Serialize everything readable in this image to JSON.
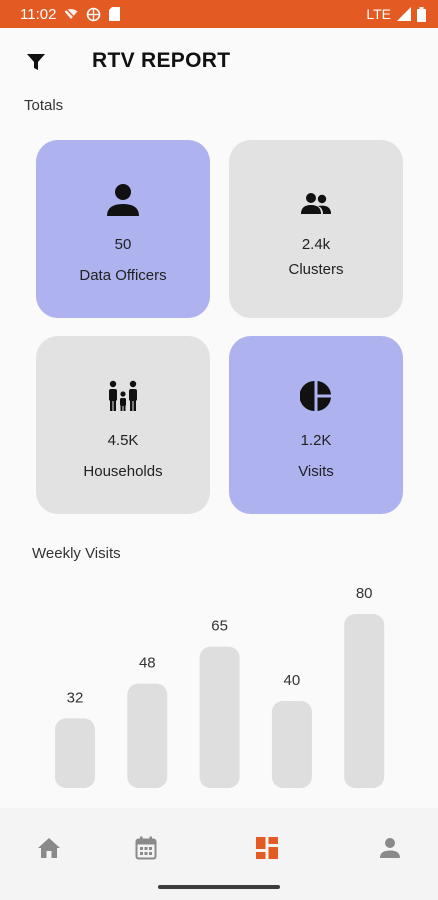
{
  "status_bar": {
    "time": "11:02",
    "network": "LTE"
  },
  "header": {
    "title": "RTV REPORT",
    "filter_icon": "filter-icon"
  },
  "totals": {
    "label": "Totals",
    "cards": [
      {
        "value": "50",
        "label": "Data Officers",
        "icon": "person-icon",
        "highlighted": true
      },
      {
        "value": "2.4k",
        "label": "Clusters",
        "icon": "group-icon",
        "highlighted": false
      },
      {
        "value": "4.5K",
        "label": "Households",
        "icon": "family-icon",
        "highlighted": false
      },
      {
        "value": "1.2K",
        "label": "Visits",
        "icon": "pie-chart-icon",
        "highlighted": true
      }
    ]
  },
  "weekly": {
    "label": "Weekly Visits",
    "chart_data": {
      "type": "bar",
      "title": "Weekly Visits",
      "values": [
        32,
        48,
        65,
        40,
        80
      ],
      "ylim": [
        0,
        80
      ],
      "grid": false,
      "bar_color": "#dedede"
    }
  },
  "bottom_nav": {
    "items": [
      {
        "icon": "home-icon",
        "active": false
      },
      {
        "icon": "calendar-icon",
        "active": false
      },
      {
        "icon": "dashboard-icon",
        "active": true
      },
      {
        "icon": "profile-icon",
        "active": false
      }
    ],
    "active_color": "#e35a22",
    "inactive_color": "#8a8a8a"
  },
  "colors": {
    "accent": "#e35a22",
    "card_highlight": "#aeb2ef",
    "card_plain": "#e2e2e2"
  }
}
